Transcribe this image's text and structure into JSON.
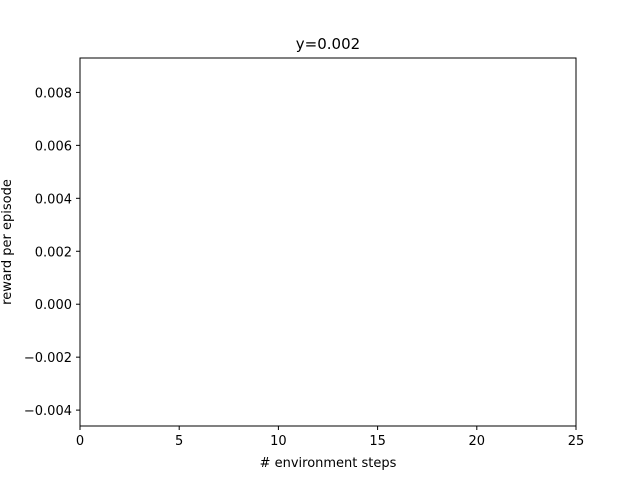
{
  "chart_data": {
    "type": "line",
    "title": "y=0.002",
    "xlabel": "# environment steps",
    "ylabel": "reward per episode",
    "xlim": [
      0,
      25
    ],
    "ylim": [
      -0.0046,
      0.0093
    ],
    "xticks": [
      0,
      5,
      10,
      15,
      20,
      25
    ],
    "xtick_labels": [
      "0",
      "5",
      "10",
      "15",
      "20",
      "25"
    ],
    "yticks": [
      -0.004,
      -0.002,
      0.0,
      0.002,
      0.004,
      0.006,
      0.008
    ],
    "ytick_labels": [
      "−0.004",
      "−0.002",
      "0.000",
      "0.002",
      "0.004",
      "0.006",
      "0.008"
    ],
    "grid": false,
    "series": []
  }
}
